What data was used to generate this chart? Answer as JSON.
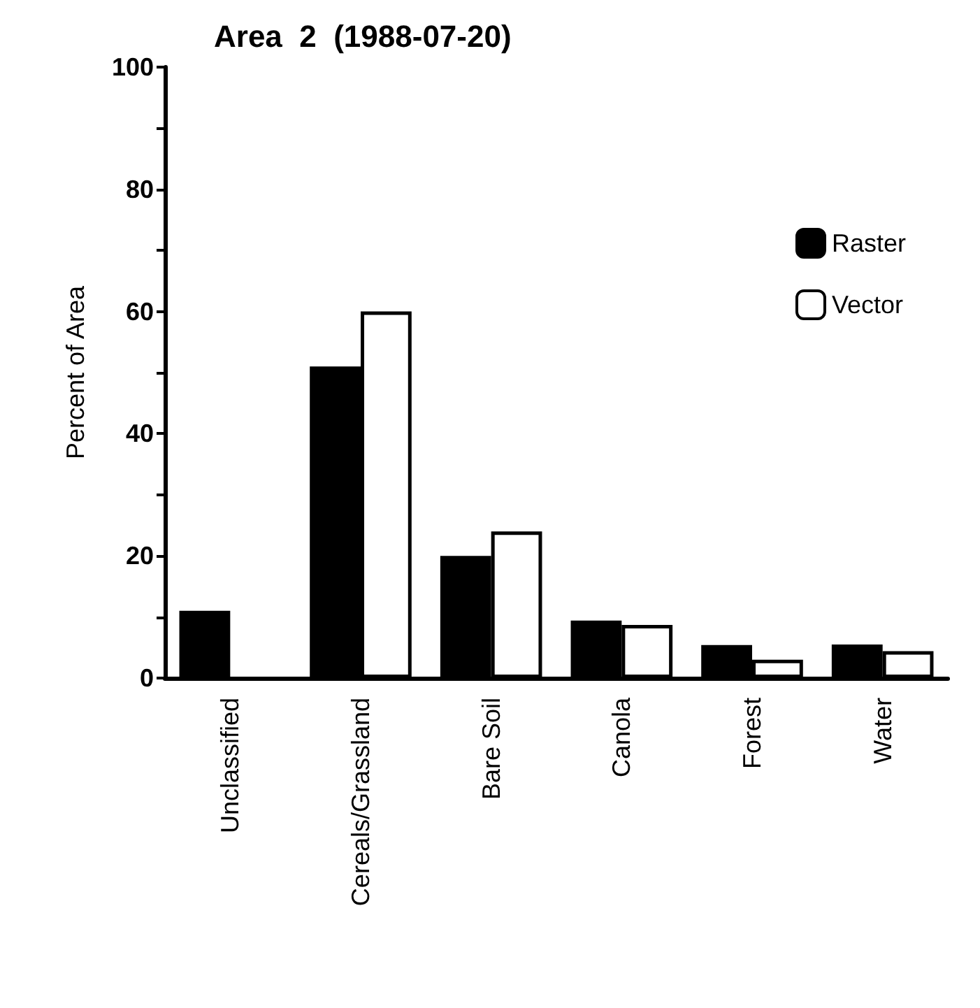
{
  "chart_data": {
    "type": "bar",
    "title": "Area  2  (1988-07-20)",
    "ylabel": "Percent of Area",
    "categories": [
      "Unclassified",
      "Cereals/Grassland",
      "Bare Soil",
      "Canola",
      "Forest",
      "Water"
    ],
    "series": [
      {
        "name": "Raster",
        "color": "#000000",
        "values": [
          11,
          51,
          20,
          9.4,
          5.4,
          5.5
        ]
      },
      {
        "name": "Vector",
        "color": "#ffffff",
        "values": [
          null,
          60,
          24,
          8.7,
          3,
          4.4
        ]
      }
    ],
    "ylim": [
      0,
      100
    ],
    "yticks": [
      0,
      20,
      40,
      60,
      80,
      100
    ],
    "grid": false,
    "legend": "top right"
  }
}
